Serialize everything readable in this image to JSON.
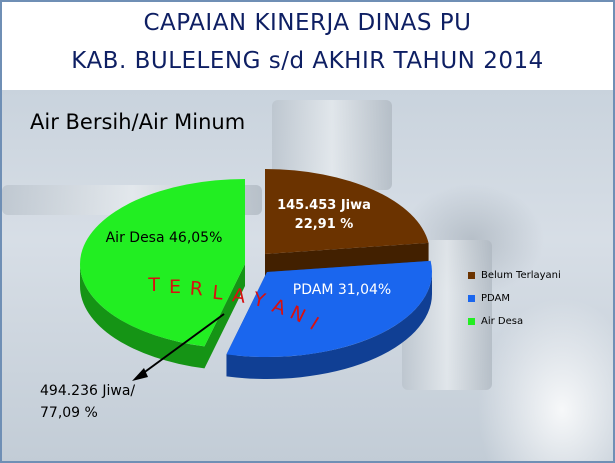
{
  "header": {
    "title_line1": "CAPAIAN KINERJA DINAS PU",
    "title_line2": "KAB. BULELENG s/d AKHIR TAHUN 2014"
  },
  "chart_data": {
    "type": "pie",
    "title": "Air Bersih/Air Minum",
    "slices": [
      {
        "name": "Air Desa",
        "value": 46.05,
        "label": "Air Desa 46,05%",
        "color": "#22ee22"
      },
      {
        "name": "Belum Terlayani",
        "value": 22.91,
        "label": "145.453 Jiwa\n22,91 %",
        "color": "#6b3300"
      },
      {
        "name": "PDAM",
        "value": 31.04,
        "label": "PDAM 31,04%",
        "color": "#1a66ee"
      }
    ],
    "legend": {
      "position": "right",
      "entries": [
        {
          "name": "Belum Terlayani",
          "color": "#6b3300"
        },
        {
          "name": "PDAM",
          "color": "#1a66ee"
        },
        {
          "name": "Air Desa",
          "color": "#22ee22"
        }
      ]
    },
    "annotations": {
      "arc_label": "TERLAYANI",
      "served_line1": "494.236 Jiwa/",
      "served_line2": "77,09 %"
    }
  }
}
